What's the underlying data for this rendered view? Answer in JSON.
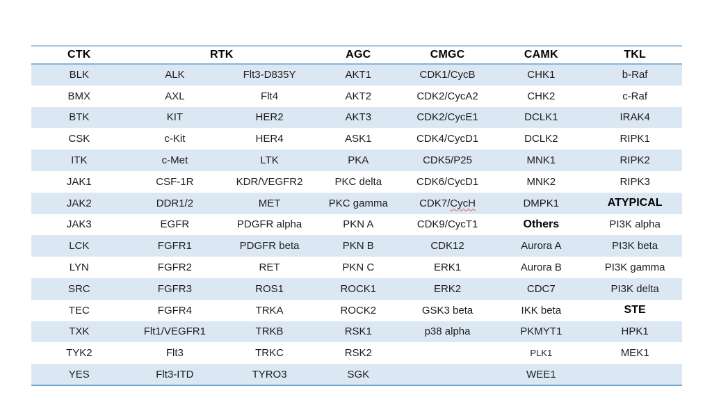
{
  "colors": {
    "row_band": "#dbe8f4",
    "line_top": "#a6c5de",
    "line_header_bottom": "#86b3d7",
    "line_table_bottom": "#6fa7ce",
    "cell_text": "#1c1c1c",
    "header_text": "#000000",
    "spellcheck_squiggle": "#d96459",
    "page_background": "#ffffff"
  },
  "table": {
    "headers": [
      {
        "label": "CTK",
        "colspan": 1
      },
      {
        "label": "RTK",
        "colspan": 2
      },
      {
        "label": "AGC",
        "colspan": 1
      },
      {
        "label": "CMGC",
        "colspan": 1
      },
      {
        "label": "CAMK",
        "colspan": 1
      },
      {
        "label": "TKL",
        "colspan": 1
      }
    ],
    "rows": [
      [
        "BLK",
        "ALK",
        "Flt3-D835Y",
        "AKT1",
        "CDK1/CycB",
        "CHK1",
        "b-Raf"
      ],
      [
        "BMX",
        "AXL",
        "Flt4",
        "AKT2",
        "CDK2/CycA2",
        "CHK2",
        "c-Raf"
      ],
      [
        "BTK",
        "KIT",
        "HER2",
        "AKT3",
        "CDK2/CycE1",
        "DCLK1",
        "IRAK4"
      ],
      [
        "CSK",
        "c-Kit",
        "HER4",
        "ASK1",
        "CDK4/CycD1",
        "DCLK2",
        "RIPK1"
      ],
      [
        "ITK",
        "c-Met",
        "LTK",
        "PKA",
        "CDK5/P25",
        "MNK1",
        "RIPK2"
      ],
      [
        "JAK1",
        "CSF-1R",
        "KDR/VEGFR2",
        "PKC delta",
        "CDK6/CycD1",
        "MNK2",
        "RIPK3"
      ],
      [
        "JAK2",
        "DDR1/2",
        "MET",
        "PKC gamma",
        {
          "text": "CDK7/CycH",
          "squiggle": "CycH"
        },
        "DMPK1",
        {
          "text": "ATYPICAL",
          "bold": true
        }
      ],
      [
        "JAK3",
        "EGFR",
        "PDGFR alpha",
        "PKN A",
        "CDK9/CycT1",
        {
          "text": "Others",
          "bold": true
        },
        "PI3K alpha"
      ],
      [
        "LCK",
        "FGFR1",
        "PDGFR beta",
        "PKN B",
        "CDK12",
        "Aurora A",
        "PI3K beta"
      ],
      [
        "LYN",
        "FGFR2",
        "RET",
        "PKN C",
        "ERK1",
        "Aurora B",
        "PI3K gamma"
      ],
      [
        "SRC",
        "FGFR3",
        "ROS1",
        "ROCK1",
        "ERK2",
        "CDC7",
        "PI3K delta"
      ],
      [
        "TEC",
        "FGFR4",
        "TRKA",
        "ROCK2",
        "GSK3 beta",
        "IKK beta",
        {
          "text": "STE",
          "bold": true
        }
      ],
      [
        "TXK",
        "Flt1/VEGFR1",
        "TRKB",
        "RSK1",
        "p38 alpha",
        "PKMYT1",
        "HPK1"
      ],
      [
        "TYK2",
        "Flt3",
        "TRKC",
        "RSK2",
        "",
        {
          "text": "PLK1",
          "small": true
        },
        "MEK1"
      ],
      [
        "YES",
        "Flt3-ITD",
        "TYRO3",
        "SGK",
        "",
        "WEE1",
        ""
      ]
    ]
  }
}
